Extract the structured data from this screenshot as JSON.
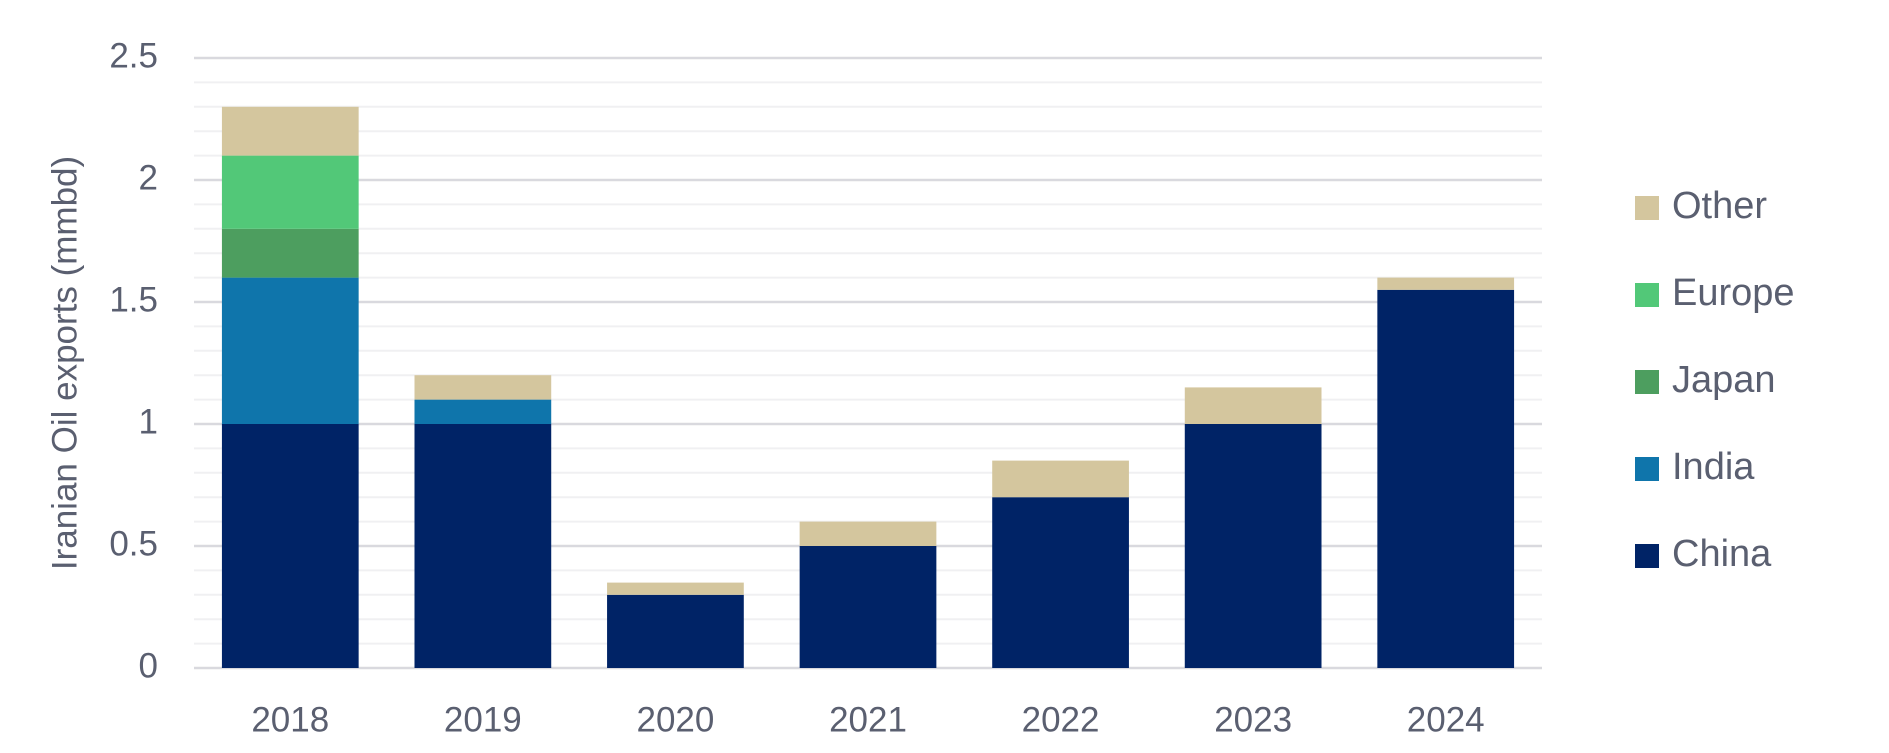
{
  "chart_data": {
    "type": "stacked_bar",
    "y_label": "Iranian Oil exports (mmbd)",
    "categories": [
      "2018",
      "2019",
      "2020",
      "2021",
      "2022",
      "2023",
      "2024"
    ],
    "series": [
      {
        "name": "China",
        "color": "#002366",
        "values": [
          1,
          1,
          0.3,
          0.5,
          0.7,
          1,
          1.55
        ]
      },
      {
        "name": "India",
        "color": "#0f75ab",
        "values": [
          0.6,
          0.1,
          0,
          0,
          0,
          0,
          0
        ]
      },
      {
        "name": "Japan",
        "color": "#4d9e5f",
        "values": [
          0.2,
          0,
          0,
          0,
          0,
          0,
          0
        ]
      },
      {
        "name": "Europe",
        "color": "#52c878",
        "values": [
          0.3,
          0,
          0,
          0,
          0,
          0,
          0
        ]
      },
      {
        "name": "Other",
        "color": "#d4c69e",
        "values": [
          0.2,
          0.1,
          0.05,
          0.1,
          0.15,
          0.15,
          0.05
        ]
      }
    ],
    "ylim": [
      0,
      2.5
    ],
    "yticks": [
      0,
      0.5,
      1,
      1.5,
      2,
      2.5
    ],
    "minor_yticks": [
      0.1,
      0.2,
      0.3,
      0.4,
      0.6,
      0.7,
      0.8,
      0.9,
      1.1,
      1.2,
      1.3,
      1.4,
      1.6,
      1.7,
      1.8,
      1.9,
      2.1,
      2.2,
      2.3,
      2.4
    ],
    "grid": true,
    "legend": "right"
  }
}
